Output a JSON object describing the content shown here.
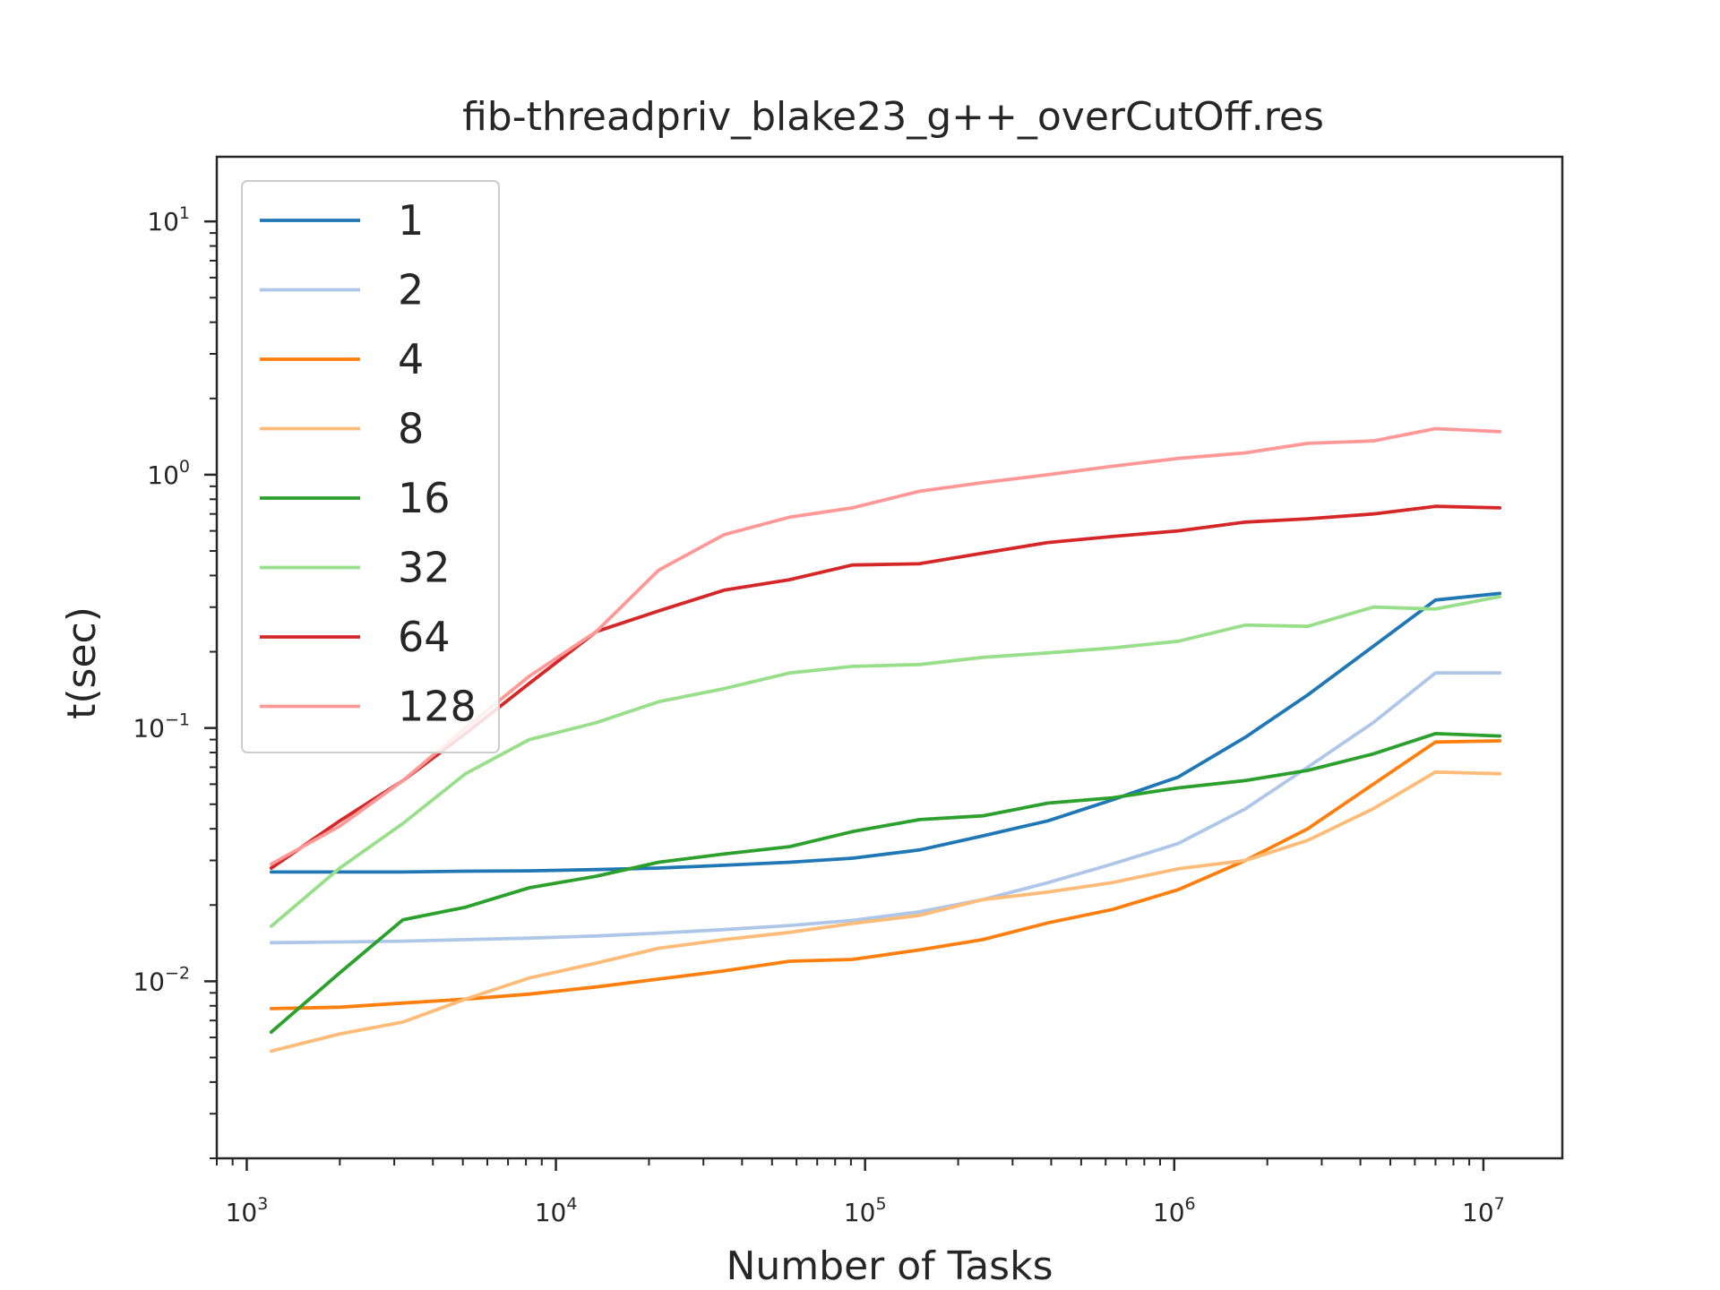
{
  "chart_data": {
    "type": "line",
    "title": "fib-threadpriv_blake23_g++_overCutOff.res",
    "xlabel": "Number of Tasks",
    "ylabel": "t(sec)",
    "xscale": "log",
    "yscale": "log",
    "xlim": [
      800,
      18000000
    ],
    "ylim": [
      0.002,
      18
    ],
    "x_ticks": [
      {
        "base": "10",
        "exp": "3"
      },
      {
        "base": "10",
        "exp": "4"
      },
      {
        "base": "10",
        "exp": "5"
      },
      {
        "base": "10",
        "exp": "6"
      },
      {
        "base": "10",
        "exp": "7"
      }
    ],
    "y_ticks": [
      {
        "base": "10",
        "exp": "−2"
      },
      {
        "base": "10",
        "exp": "−1"
      },
      {
        "base": "10",
        "exp": "0"
      },
      {
        "base": "10",
        "exp": "1"
      }
    ],
    "grid": false,
    "legend_position": "upper-left",
    "x": [
      1200,
      2000,
      3200,
      5100,
      8200,
      13500,
      21500,
      35000,
      57000,
      91000,
      150000,
      240000,
      390000,
      630000,
      1030000,
      1700000,
      2700000,
      4400000,
      7000000,
      11300000
    ],
    "series": [
      {
        "name": "1",
        "color": "#1f77b4",
        "values": [
          0.027,
          0.027,
          0.027,
          0.0272,
          0.0273,
          0.0276,
          0.028,
          0.0287,
          0.0295,
          0.0306,
          0.033,
          0.0375,
          0.043,
          0.052,
          0.064,
          0.092,
          0.135,
          0.21,
          0.32,
          0.34
        ]
      },
      {
        "name": "2",
        "color": "#aec7e8",
        "values": [
          0.0142,
          0.0143,
          0.0144,
          0.0146,
          0.0148,
          0.0151,
          0.0155,
          0.016,
          0.0166,
          0.0174,
          0.0188,
          0.021,
          0.0245,
          0.029,
          0.035,
          0.048,
          0.07,
          0.105,
          0.165,
          0.165
        ]
      },
      {
        "name": "4",
        "color": "#ff7f0e",
        "values": [
          0.0078,
          0.0079,
          0.0082,
          0.0085,
          0.0089,
          0.0095,
          0.0102,
          0.011,
          0.012,
          0.0122,
          0.0133,
          0.0146,
          0.017,
          0.0192,
          0.023,
          0.03,
          0.04,
          0.06,
          0.088,
          0.089
        ]
      },
      {
        "name": "8",
        "color": "#ffbb78",
        "values": [
          0.0053,
          0.0062,
          0.0069,
          0.0085,
          0.0103,
          0.0118,
          0.0135,
          0.0146,
          0.0156,
          0.0169,
          0.0182,
          0.021,
          0.0225,
          0.0245,
          0.0278,
          0.03,
          0.036,
          0.048,
          0.067,
          0.066
        ]
      },
      {
        "name": "16",
        "color": "#2ca02c",
        "values": [
          0.0063,
          0.0108,
          0.0175,
          0.0196,
          0.0234,
          0.026,
          0.0295,
          0.0318,
          0.034,
          0.039,
          0.0435,
          0.045,
          0.0505,
          0.053,
          0.058,
          0.062,
          0.068,
          0.079,
          0.095,
          0.093
        ]
      },
      {
        "name": "32",
        "color": "#98df8a",
        "values": [
          0.0165,
          0.028,
          0.042,
          0.066,
          0.09,
          0.105,
          0.127,
          0.143,
          0.165,
          0.175,
          0.178,
          0.19,
          0.198,
          0.207,
          0.22,
          0.255,
          0.252,
          0.3,
          0.295,
          0.33
        ]
      },
      {
        "name": "64",
        "color": "#d62728",
        "values": [
          0.028,
          0.043,
          0.062,
          0.095,
          0.15,
          0.24,
          0.29,
          0.35,
          0.385,
          0.44,
          0.445,
          0.49,
          0.54,
          0.57,
          0.6,
          0.65,
          0.67,
          0.7,
          0.75,
          0.74
        ]
      },
      {
        "name": "128",
        "color": "#ff9896",
        "values": [
          0.029,
          0.041,
          0.062,
          0.1,
          0.16,
          0.24,
          0.42,
          0.58,
          0.68,
          0.74,
          0.86,
          0.93,
          1.0,
          1.08,
          1.16,
          1.22,
          1.33,
          1.36,
          1.52,
          1.48
        ]
      }
    ]
  }
}
